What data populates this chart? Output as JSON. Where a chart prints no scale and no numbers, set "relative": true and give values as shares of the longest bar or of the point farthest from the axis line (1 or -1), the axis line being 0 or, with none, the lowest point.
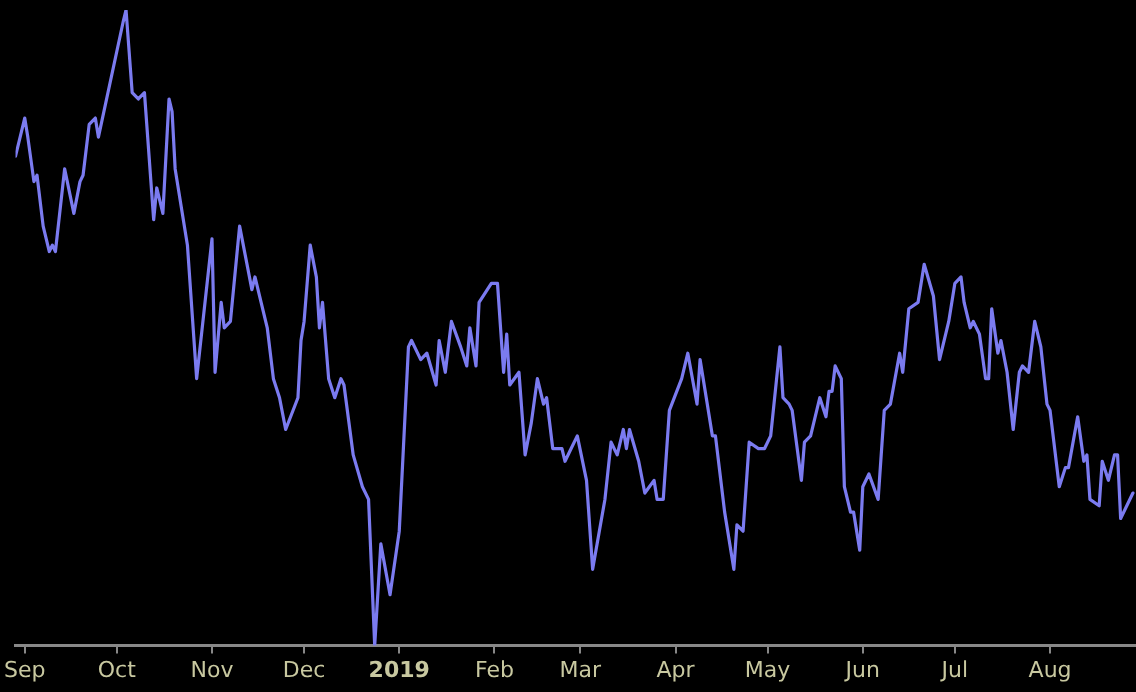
{
  "chart_data": {
    "type": "line",
    "relative": true,
    "grid": false,
    "legend": false,
    "marker": "none",
    "line_style": "solid",
    "xlim": [
      "2018-08-29",
      "2019-08-29"
    ],
    "xticks": [
      {
        "value": "2018-09-01",
        "label": "Sep"
      },
      {
        "value": "2018-10-01",
        "label": "Oct"
      },
      {
        "value": "2018-11-01",
        "label": "Nov"
      },
      {
        "value": "2018-12-01",
        "label": "Dec"
      },
      {
        "value": "2019-01-01",
        "label": "2019"
      },
      {
        "value": "2019-02-01",
        "label": "Feb"
      },
      {
        "value": "2019-03-01",
        "label": "Mar"
      },
      {
        "value": "2019-04-01",
        "label": "Apr"
      },
      {
        "value": "2019-05-01",
        "label": "May"
      },
      {
        "value": "2019-06-01",
        "label": "Jun"
      },
      {
        "value": "2019-07-01",
        "label": "Jul"
      },
      {
        "value": "2019-08-01",
        "label": "Aug"
      }
    ],
    "series": [
      {
        "color": "#7b7bf0",
        "x": [
          "2018-08-29",
          "2018-09-01",
          "2018-09-02",
          "2018-09-04",
          "2018-09-05",
          "2018-09-07",
          "2018-09-09",
          "2018-09-10",
          "2018-09-11",
          "2018-09-14",
          "2018-09-17",
          "2018-09-19",
          "2018-09-20",
          "2018-09-22",
          "2018-09-24",
          "2018-09-25",
          "2018-10-03",
          "2018-10-04",
          "2018-10-06",
          "2018-10-08",
          "2018-10-10",
          "2018-10-13",
          "2018-10-14",
          "2018-10-16",
          "2018-10-18",
          "2018-10-19",
          "2018-10-20",
          "2018-10-24",
          "2018-10-27",
          "2018-11-01",
          "2018-11-02",
          "2018-11-04",
          "2018-11-05",
          "2018-11-07",
          "2018-11-10",
          "2018-11-14",
          "2018-11-15",
          "2018-11-19",
          "2018-11-21",
          "2018-11-23",
          "2018-11-25",
          "2018-11-29",
          "2018-11-30",
          "2018-12-01",
          "2018-12-03",
          "2018-12-05",
          "2018-12-06",
          "2018-12-07",
          "2018-12-09",
          "2018-12-11",
          "2018-12-13",
          "2018-12-14",
          "2018-12-17",
          "2018-12-20",
          "2018-12-22",
          "2018-12-24",
          "2018-12-26",
          "2018-12-29",
          "2019-01-01",
          "2019-01-04",
          "2019-01-05",
          "2019-01-08",
          "2019-01-10",
          "2019-01-13",
          "2019-01-14",
          "2019-01-16",
          "2019-01-18",
          "2019-01-21",
          "2019-01-23",
          "2019-01-24",
          "2019-01-26",
          "2019-01-27",
          "2019-01-31",
          "2019-02-02",
          "2019-02-04",
          "2019-02-05",
          "2019-02-06",
          "2019-02-09",
          "2019-02-11",
          "2019-02-13",
          "2019-02-15",
          "2019-02-17",
          "2019-02-18",
          "2019-02-20",
          "2019-02-23",
          "2019-02-24",
          "2019-02-26",
          "2019-02-28",
          "2019-03-03",
          "2019-03-05",
          "2019-03-09",
          "2019-03-11",
          "2019-03-13",
          "2019-03-15",
          "2019-03-16",
          "2019-03-17",
          "2019-03-20",
          "2019-03-22",
          "2019-03-25",
          "2019-03-26",
          "2019-03-28",
          "2019-03-30",
          "2019-04-03",
          "2019-04-05",
          "2019-04-08",
          "2019-04-09",
          "2019-04-13",
          "2019-04-14",
          "2019-04-17",
          "2019-04-20",
          "2019-04-21",
          "2019-04-23",
          "2019-04-25",
          "2019-04-28",
          "2019-04-30",
          "2019-05-02",
          "2019-05-05",
          "2019-05-06",
          "2019-05-08",
          "2019-05-09",
          "2019-05-12",
          "2019-05-13",
          "2019-05-15",
          "2019-05-18",
          "2019-05-20",
          "2019-05-21",
          "2019-05-22",
          "2019-05-23",
          "2019-05-25",
          "2019-05-26",
          "2019-05-28",
          "2019-05-29",
          "2019-05-31",
          "2019-06-01",
          "2019-06-03",
          "2019-06-06",
          "2019-06-08",
          "2019-06-10",
          "2019-06-13",
          "2019-06-14",
          "2019-06-16",
          "2019-06-19",
          "2019-06-21",
          "2019-06-24",
          "2019-06-26",
          "2019-06-29",
          "2019-07-01",
          "2019-07-03",
          "2019-07-04",
          "2019-07-06",
          "2019-07-07",
          "2019-07-09",
          "2019-07-11",
          "2019-07-12",
          "2019-07-13",
          "2019-07-15",
          "2019-07-16",
          "2019-07-18",
          "2019-07-20",
          "2019-07-22",
          "2019-07-23",
          "2019-07-25",
          "2019-07-27",
          "2019-07-29",
          "2019-07-31",
          "2019-08-01",
          "2019-08-04",
          "2019-08-06",
          "2019-08-07",
          "2019-08-10",
          "2019-08-12",
          "2019-08-13",
          "2019-08-14",
          "2019-08-17",
          "2019-08-18",
          "2019-08-20",
          "2019-08-22",
          "2019-08-23",
          "2019-08-24",
          "2019-08-26",
          "2019-08-28"
        ],
        "values": [
          0.77,
          0.83,
          0.8,
          0.73,
          0.74,
          0.66,
          0.62,
          0.63,
          0.62,
          0.75,
          0.68,
          0.73,
          0.74,
          0.82,
          0.83,
          0.8,
          0.98,
          1,
          0.87,
          0.86,
          0.87,
          0.67,
          0.72,
          0.68,
          0.86,
          0.84,
          0.75,
          0.63,
          0.42,
          0.64,
          0.43,
          0.54,
          0.5,
          0.51,
          0.66,
          0.56,
          0.58,
          0.5,
          0.42,
          0.39,
          0.34,
          0.39,
          0.48,
          0.51,
          0.63,
          0.58,
          0.5,
          0.54,
          0.42,
          0.39,
          0.42,
          0.41,
          0.3,
          0.25,
          0.23,
          0,
          0.16,
          0.08,
          0.18,
          0.47,
          0.48,
          0.45,
          0.46,
          0.41,
          0.48,
          0.43,
          0.51,
          0.47,
          0.44,
          0.5,
          0.44,
          0.54,
          0.57,
          0.57,
          0.43,
          0.49,
          0.41,
          0.43,
          0.3,
          0.35,
          0.42,
          0.38,
          0.39,
          0.31,
          0.31,
          0.29,
          0.31,
          0.33,
          0.26,
          0.12,
          0.23,
          0.32,
          0.3,
          0.34,
          0.31,
          0.34,
          0.29,
          0.24,
          0.26,
          0.23,
          0.23,
          0.37,
          0.42,
          0.46,
          0.38,
          0.45,
          0.33,
          0.33,
          0.21,
          0.12,
          0.19,
          0.18,
          0.32,
          0.31,
          0.31,
          0.33,
          0.47,
          0.39,
          0.38,
          0.37,
          0.26,
          0.32,
          0.33,
          0.39,
          0.36,
          0.4,
          0.4,
          0.44,
          0.42,
          0.25,
          0.21,
          0.21,
          0.15,
          0.25,
          0.27,
          0.23,
          0.37,
          0.38,
          0.46,
          0.43,
          0.53,
          0.54,
          0.6,
          0.55,
          0.45,
          0.51,
          0.57,
          0.58,
          0.54,
          0.5,
          0.51,
          0.49,
          0.42,
          0.42,
          0.53,
          0.46,
          0.48,
          0.43,
          0.34,
          0.43,
          0.44,
          0.43,
          0.51,
          0.47,
          0.38,
          0.37,
          0.25,
          0.28,
          0.28,
          0.36,
          0.29,
          0.3,
          0.23,
          0.22,
          0.29,
          0.26,
          0.3,
          0.3,
          0.2,
          0.22,
          0.24
        ]
      }
    ]
  }
}
